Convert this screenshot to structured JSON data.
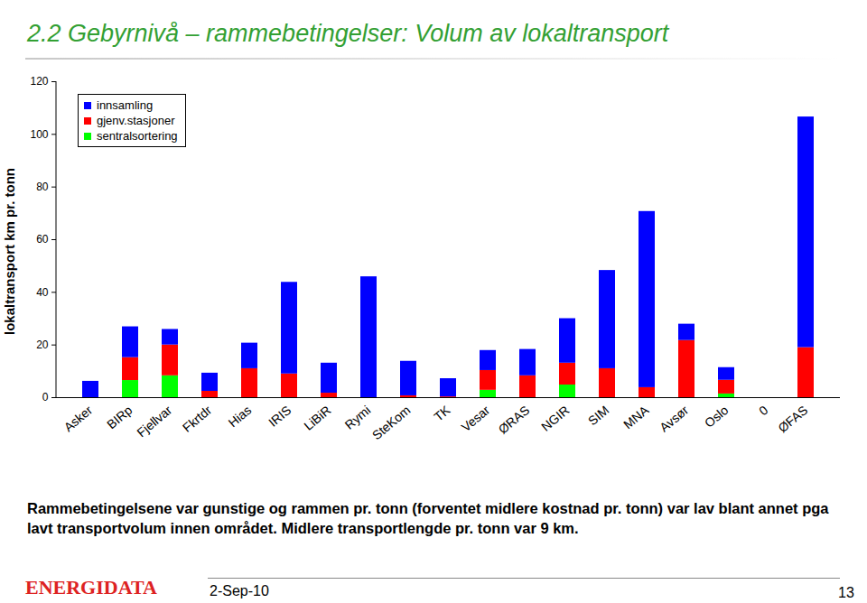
{
  "chart_data": {
    "type": "bar",
    "title": "2.2 Gebyrnivå – rammebetingelser: Volum av lokaltransport",
    "y_label": "lokaltransport km pr. tonn",
    "categories": [
      "Asker",
      "BIRp",
      "Fjellvar",
      "Fkrtdr",
      "Hias",
      "IRIS",
      "LiBiR",
      "Rymi",
      "SteKom",
      "TK",
      "Vesar",
      "ØRAS",
      "NGIR",
      "SIM",
      "MNA",
      "Avsør",
      "Oslo",
      "0",
      "ØFAS"
    ],
    "series": [
      {
        "name": "innsamling",
        "color": "#0000ff",
        "values": [
          6.2,
          11.7,
          5.9,
          6.9,
          9.7,
          34.8,
          11.4,
          45.9,
          13.1,
          6.9,
          7.6,
          10.0,
          16.9,
          37.3,
          66.9,
          6.2,
          4.8,
          0,
          87.6
        ]
      },
      {
        "name": "gjenv.stasjoner",
        "color": "#ff0000",
        "values": [
          0,
          8.7,
          11.7,
          2.4,
          11.0,
          9.0,
          1.7,
          0,
          0.7,
          0.3,
          7.5,
          8.3,
          8.3,
          11.0,
          3.8,
          21.7,
          5.2,
          0,
          19.0
        ]
      },
      {
        "name": "sentralsortering",
        "color": "#00ff00",
        "values": [
          0,
          6.5,
          8.3,
          0,
          0,
          0,
          0,
          0,
          0,
          0,
          2.8,
          0,
          4.8,
          0,
          0,
          0,
          1.4,
          0,
          0
        ]
      }
    ],
    "stacked": true,
    "ylim": [
      0,
      120
    ],
    "yticks": [
      0,
      20,
      40,
      60,
      80,
      100,
      120
    ],
    "grid": false,
    "legend": "top-left",
    "caption": "Rammebetingelsene var gunstige og rammen pr. tonn (forventet midlere kostnad pr. tonn) var lav blant annet pga lavt transportvolum innen området. Midlere transportlengde pr. tonn var 9 km.",
    "footer": {
      "logo": "ENERGIDATA",
      "date": "2-Sep-10",
      "page": "13"
    }
  }
}
